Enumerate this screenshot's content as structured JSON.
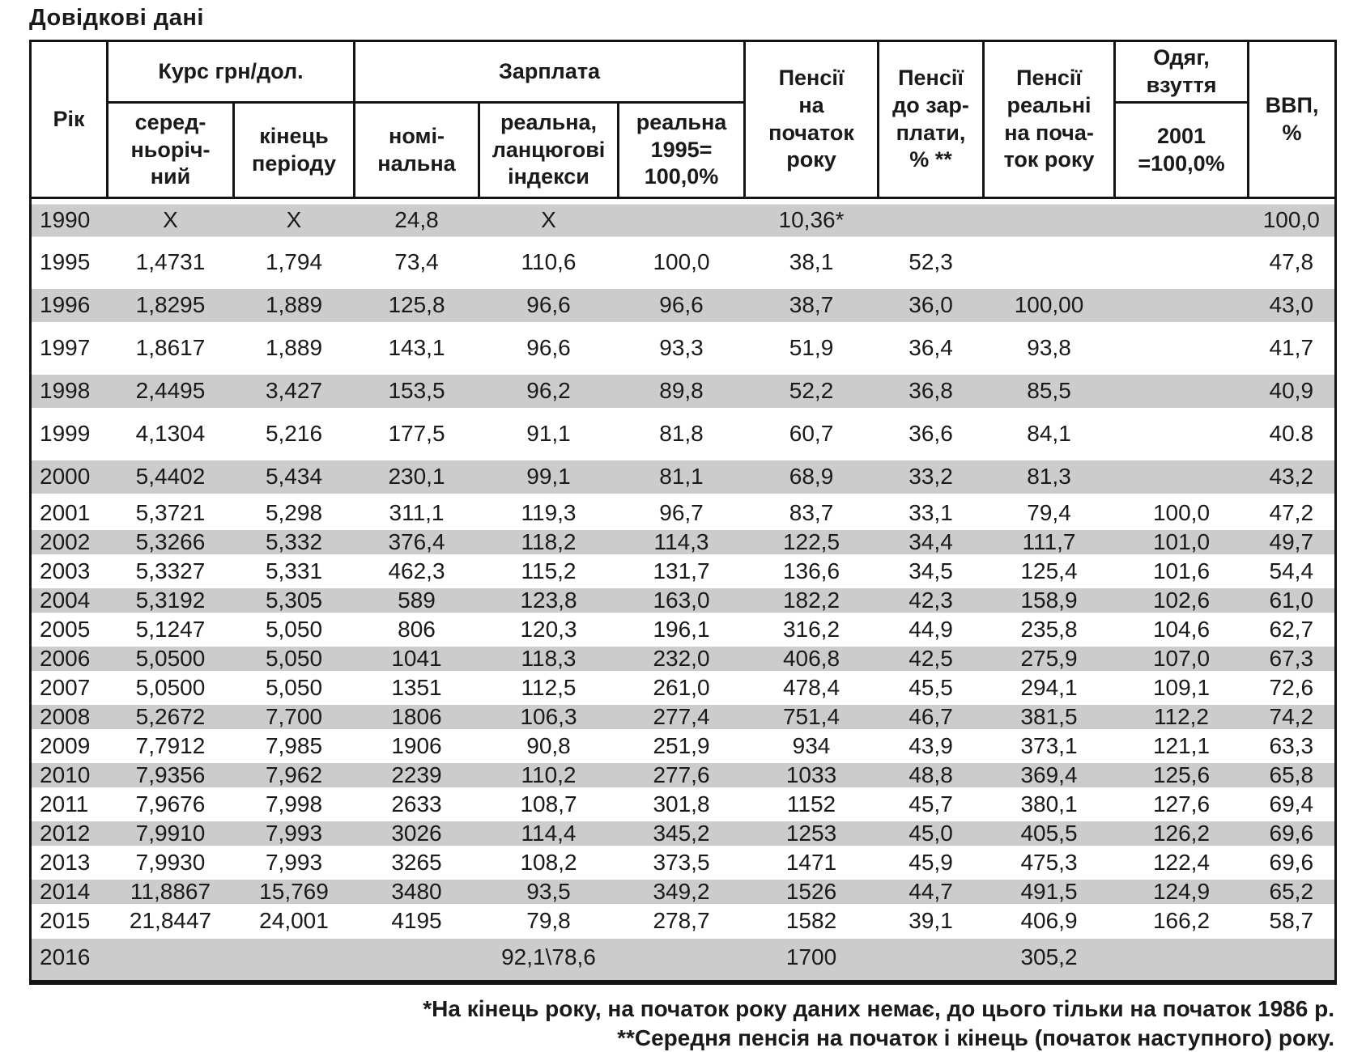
{
  "title": "Довідкові дані",
  "colors": {
    "stripe": "#cccccc",
    "border": "#141414",
    "text": "#1a1a1a",
    "background": "#ffffff"
  },
  "table": {
    "header": {
      "year": "Рік",
      "rate_group": "Курс грн/дол.",
      "salary_group": "Зарплата",
      "rate_avg": "серед-\nньоріч-\nний",
      "rate_end": "кінець\nперіоду",
      "salary_nominal": "номі-\nнальна",
      "salary_real_chain": "реальна,\nланцюгові\nіндекси",
      "salary_real_1995": "реальна\n1995=\n100,0%",
      "pension_start": "Пенсії\nна\nпочаток\nроку",
      "pension_to_salary": "Пенсії\nдо зар-\nплати,\n% **",
      "pension_real": "Пенсії\nреальні\nна поча-\nток року",
      "clothing": "Одяг,\nвзуття",
      "clothing_base": "2001\n=100,0%",
      "gdp": "ВВП,\n%"
    },
    "rows": [
      {
        "year": "1990",
        "shade": "gray",
        "size": "tall",
        "cells": [
          "X",
          "X",
          "24,8",
          "X",
          "",
          "10,36*",
          "",
          "",
          "",
          "100,0"
        ]
      },
      {
        "year": "1995",
        "shade": "white",
        "size": "tall",
        "cells": [
          "1,4731",
          "1,794",
          "73,4",
          "110,6",
          "100,0",
          "38,1",
          "52,3",
          "",
          "",
          "47,8"
        ]
      },
      {
        "year": "1996",
        "shade": "gray",
        "size": "tall",
        "cells": [
          "1,8295",
          "1,889",
          "125,8",
          "96,6",
          "96,6",
          "38,7",
          "36,0",
          "100,00",
          "",
          "43,0"
        ]
      },
      {
        "year": "1997",
        "shade": "white",
        "size": "tall",
        "cells": [
          "1,8617",
          "1,889",
          "143,1",
          "96,6",
          "93,3",
          "51,9",
          "36,4",
          "93,8",
          "",
          "41,7"
        ]
      },
      {
        "year": "1998",
        "shade": "gray",
        "size": "tall",
        "cells": [
          "2,4495",
          "3,427",
          "153,5",
          "96,2",
          "89,8",
          "52,2",
          "36,8",
          "85,5",
          "",
          "40,9"
        ]
      },
      {
        "year": "1999",
        "shade": "white",
        "size": "tall",
        "cells": [
          "4,1304",
          "5,216",
          "177,5",
          "91,1",
          "81,8",
          "60,7",
          "36,6",
          "84,1",
          "",
          "40.8"
        ]
      },
      {
        "year": "2000",
        "shade": "gray",
        "size": "tall",
        "cells": [
          "5,4402",
          "5,434",
          "230,1",
          "99,1",
          "81,1",
          "68,9",
          "33,2",
          "81,3",
          "",
          "43,2"
        ]
      },
      {
        "year": "2001",
        "shade": "white",
        "size": "compact",
        "cells": [
          "5,3721",
          "5,298",
          "311,1",
          "119,3",
          "96,7",
          "83,7",
          "33,1",
          "79,4",
          "100,0",
          "47,2"
        ]
      },
      {
        "year": "2002",
        "shade": "gray",
        "size": "compact",
        "cells": [
          "5,3266",
          "5,332",
          "376,4",
          "118,2",
          "114,3",
          "122,5",
          "34,4",
          "111,7",
          "101,0",
          "49,7"
        ]
      },
      {
        "year": "2003",
        "shade": "white",
        "size": "compact",
        "cells": [
          "5,3327",
          "5,331",
          "462,3",
          "115,2",
          "131,7",
          "136,6",
          "34,5",
          "125,4",
          "101,6",
          "54,4"
        ]
      },
      {
        "year": "2004",
        "shade": "gray",
        "size": "compact",
        "cells": [
          "5,3192",
          "5,305",
          "589",
          "123,8",
          "163,0",
          "182,2",
          "42,3",
          "158,9",
          "102,6",
          "61,0"
        ]
      },
      {
        "year": "2005",
        "shade": "white",
        "size": "compact",
        "cells": [
          "5,1247",
          "5,050",
          "806",
          "120,3",
          "196,1",
          "316,2",
          "44,9",
          "235,8",
          "104,6",
          "62,7"
        ]
      },
      {
        "year": "2006",
        "shade": "gray",
        "size": "compact",
        "cells": [
          "5,0500",
          "5,050",
          "1041",
          "118,3",
          "232,0",
          "406,8",
          "42,5",
          "275,9",
          "107,0",
          "67,3"
        ]
      },
      {
        "year": "2007",
        "shade": "white",
        "size": "compact",
        "cells": [
          "5,0500",
          "5,050",
          "1351",
          "112,5",
          "261,0",
          "478,4",
          "45,5",
          "294,1",
          "109,1",
          "72,6"
        ]
      },
      {
        "year": "2008",
        "shade": "gray",
        "size": "compact",
        "cells": [
          "5,2672",
          "7,700",
          "1806",
          "106,3",
          "277,4",
          "751,4",
          "46,7",
          "381,5",
          "112,2",
          "74,2"
        ]
      },
      {
        "year": "2009",
        "shade": "white",
        "size": "compact",
        "cells": [
          "7,7912",
          "7,985",
          "1906",
          "90,8",
          "251,9",
          "934",
          "43,9",
          "373,1",
          "121,1",
          "63,3"
        ]
      },
      {
        "year": "2010",
        "shade": "gray",
        "size": "compact",
        "cells": [
          "7,9356",
          "7,962",
          "2239",
          "110,2",
          "277,6",
          "1033",
          "48,8",
          "369,4",
          "125,6",
          "65,8"
        ]
      },
      {
        "year": "2011",
        "shade": "white",
        "size": "compact",
        "cells": [
          "7,9676",
          "7,998",
          "2633",
          "108,7",
          "301,8",
          "1152",
          "45,7",
          "380,1",
          "127,6",
          "69,4"
        ]
      },
      {
        "year": "2012",
        "shade": "gray",
        "size": "compact",
        "cells": [
          "7,9910",
          "7,993",
          "3026",
          "114,4",
          "345,2",
          "1253",
          "45,0",
          "405,5",
          "126,2",
          "69,6"
        ]
      },
      {
        "year": "2013",
        "shade": "white",
        "size": "compact",
        "cells": [
          "7,9930",
          "7,993",
          "3265",
          "108,2",
          "373,5",
          "1471",
          "45,9",
          "475,3",
          "122,4",
          "69,6"
        ]
      },
      {
        "year": "2014",
        "shade": "gray",
        "size": "compact",
        "cells": [
          "11,8867",
          "15,769",
          "3480",
          "93,5",
          "349,2",
          "1526",
          "44,7",
          "491,5",
          "124,9",
          "65,2"
        ]
      },
      {
        "year": "2015",
        "shade": "white",
        "size": "compact",
        "cells": [
          "21,8447",
          "24,001",
          "4195",
          "79,8",
          "278,7",
          "1582",
          "39,1",
          "406,9",
          "166,2",
          "58,7"
        ]
      },
      {
        "year": "2016",
        "shade": "gray",
        "size": "last",
        "cells": [
          "",
          "",
          "",
          "92,1\\78,6",
          "",
          "1700",
          "",
          "305,2",
          "",
          ""
        ]
      }
    ]
  },
  "footnotes": [
    "*На кінець року, на початок року даних немає, до цього тільки на початок 1986 р.",
    "**Середня пенсія на початок і кінець (початок наступного) року."
  ]
}
